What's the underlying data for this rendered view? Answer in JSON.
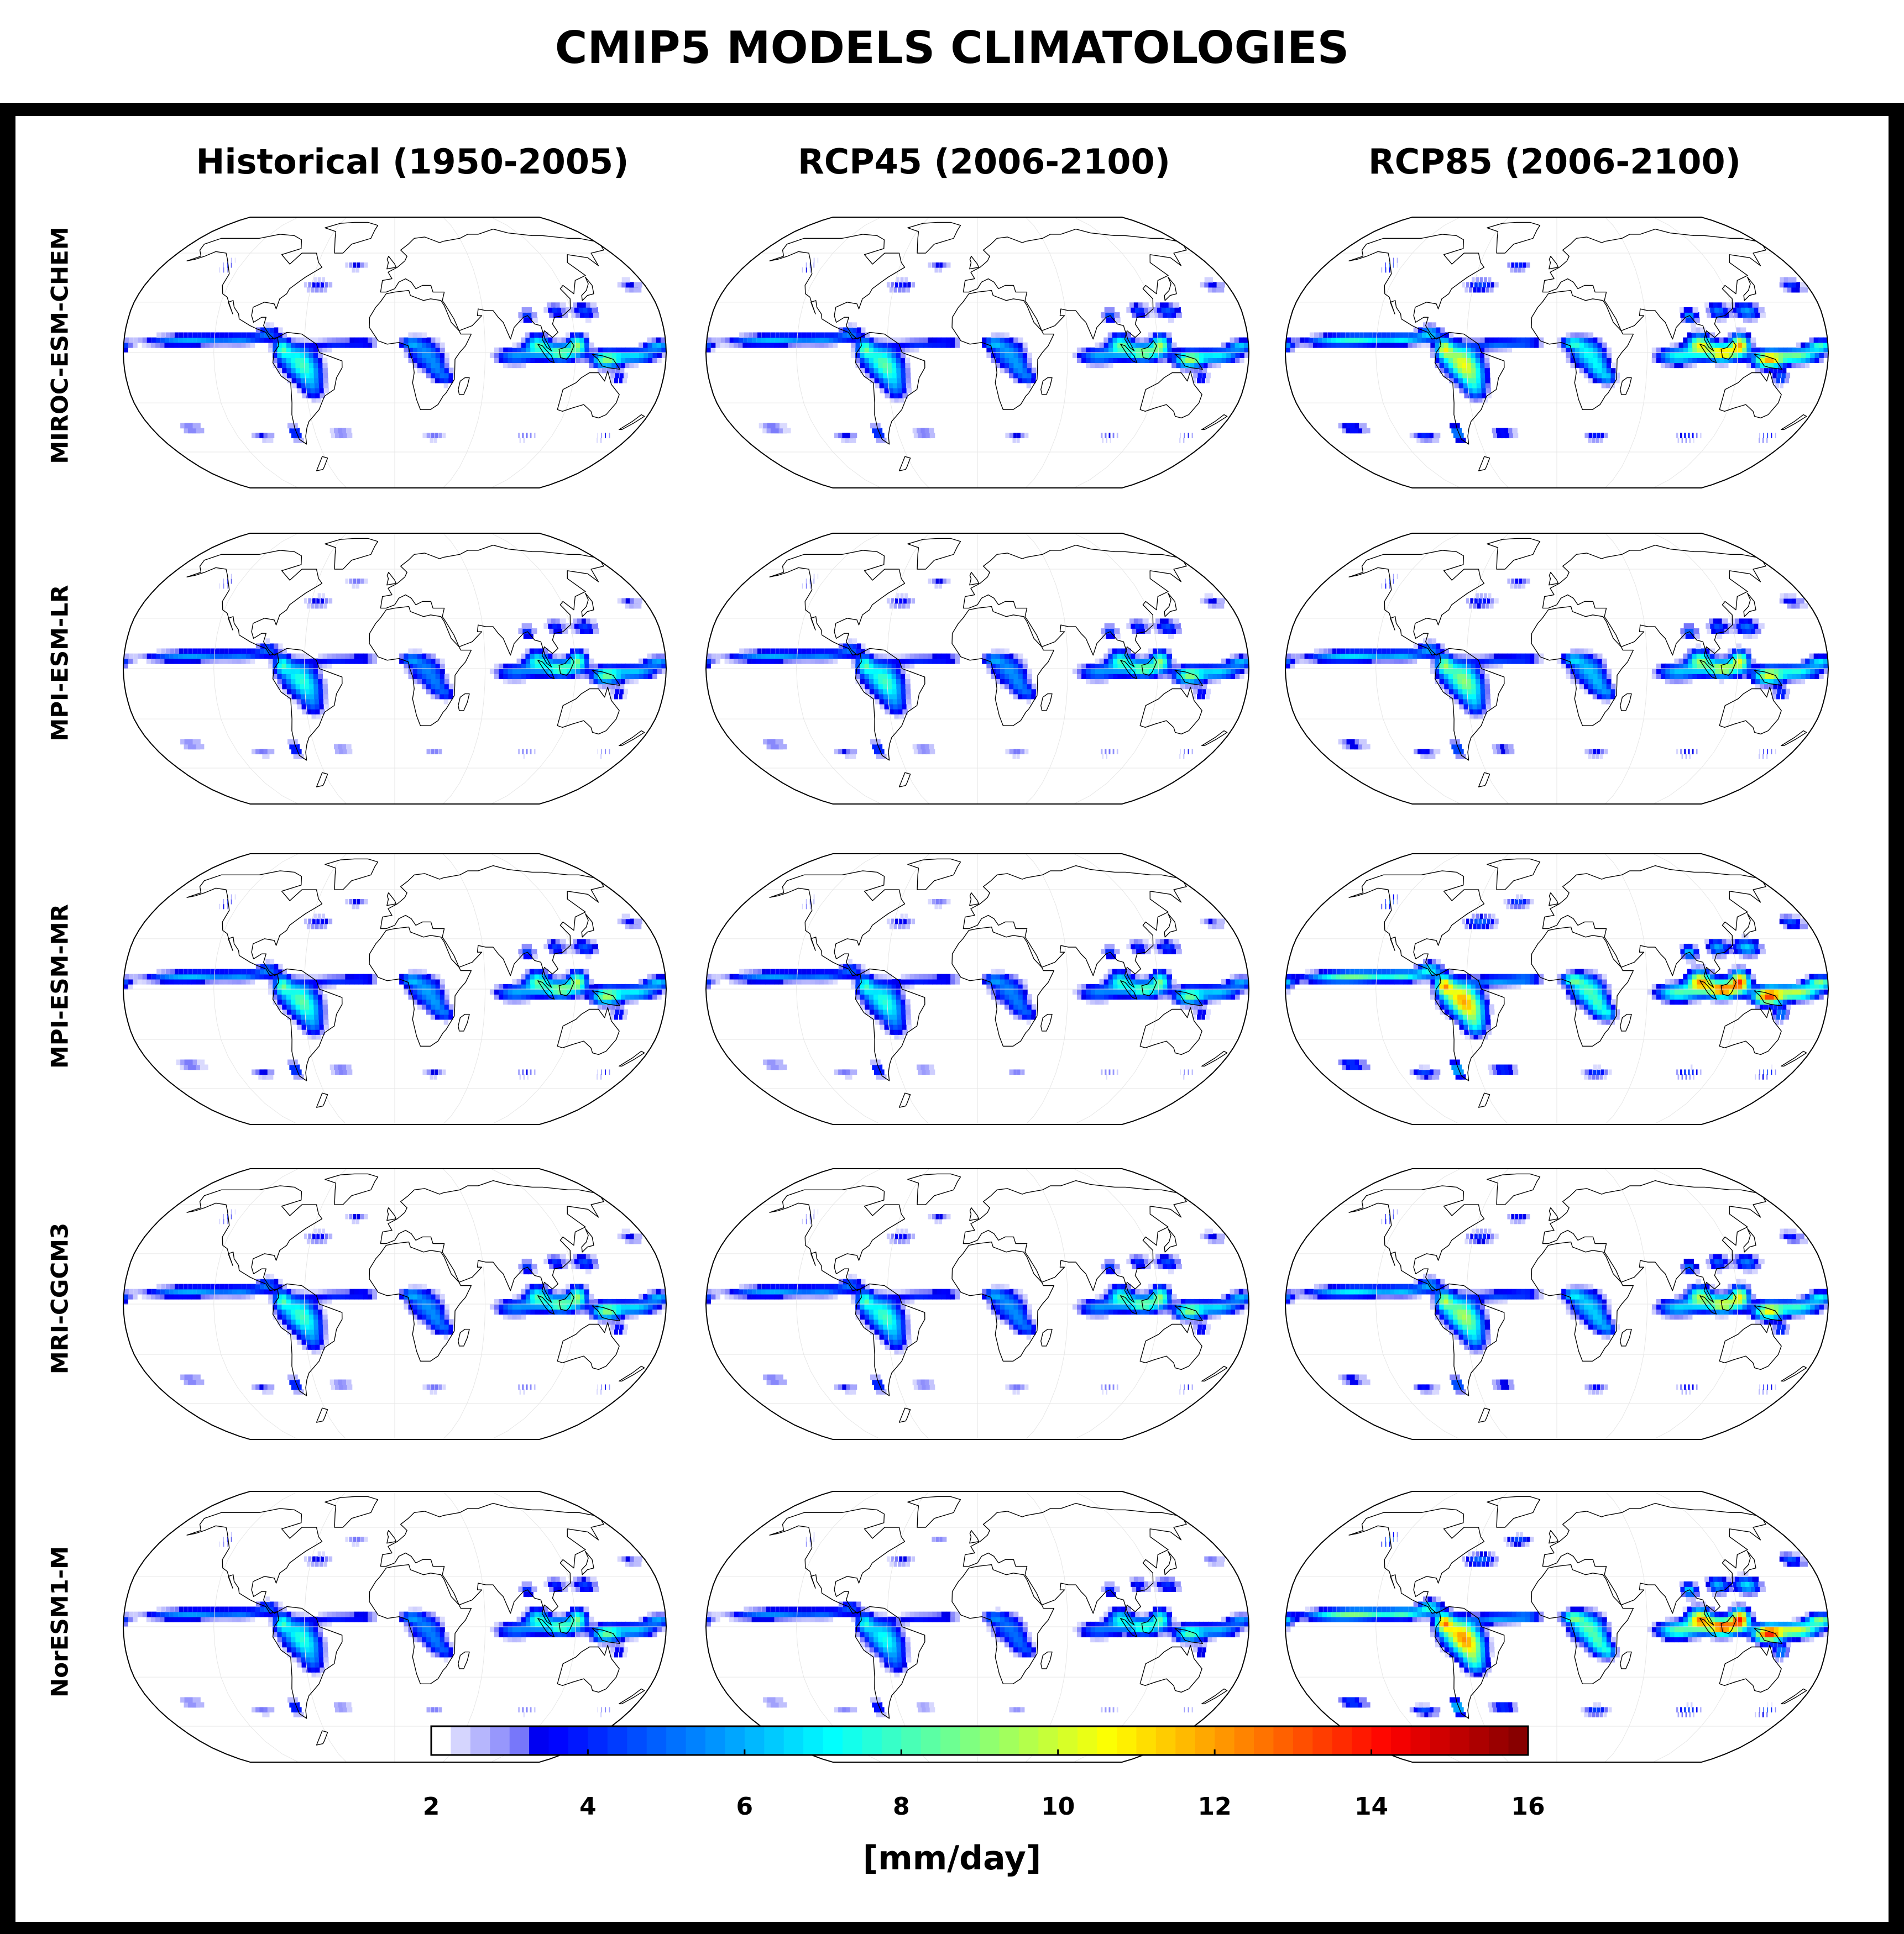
{
  "title": "CMIP5 MODELS CLIMATOLOGIES",
  "columns": [
    "Historical (1950-2005)",
    "RCP45 (2006-2100)",
    "RCP85 (2006-2100)"
  ],
  "rows": [
    "MIROC-ESM-CHEM",
    "MPI-ESM-LR",
    "MPI-ESM-MR",
    "MRI-CGCM3",
    "NorESM1-M"
  ],
  "map_projection": "Robinson",
  "map_style": {
    "ocean_fill": "#ffffff",
    "coastline_color": "#000000",
    "graticule_color": "#e6e6e6"
  },
  "colorbar": {
    "min": 2,
    "max": 16,
    "ticks": [
      "2",
      "4",
      "6",
      "8",
      "10",
      "12",
      "14",
      "16"
    ],
    "label": "[mm/day]",
    "colormap": "jet (white below ~2.5)"
  },
  "panels_intensity": [
    [
      1.0,
      1.05,
      1.35
    ],
    [
      0.95,
      1.0,
      1.15
    ],
    [
      1.05,
      0.95,
      1.55
    ],
    [
      1.0,
      1.0,
      1.2
    ],
    [
      0.95,
      0.9,
      1.6
    ]
  ]
}
